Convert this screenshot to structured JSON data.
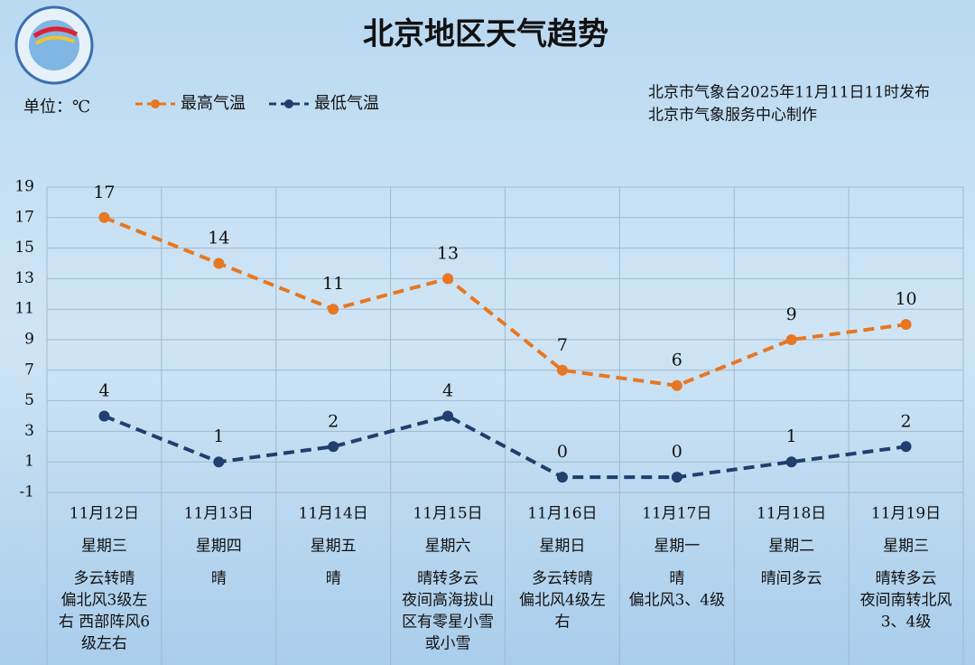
{
  "chart_data": {
    "type": "line",
    "title": "北京地区天气趋势",
    "unit": "单位：℃",
    "publisher": [
      "北京市气象台2025年11月11日11时发布",
      "北京市气象服务中心制作"
    ],
    "categories": [
      "11月12日",
      "11月13日",
      "11月14日",
      "11月15日",
      "11月16日",
      "11月17日",
      "11月18日",
      "11月19日"
    ],
    "weekdays": [
      "星期三",
      "星期四",
      "星期五",
      "星期六",
      "星期日",
      "星期一",
      "星期二",
      "星期三"
    ],
    "weather": [
      [
        "多云转晴",
        "偏北风3级左",
        "右  西部阵风6",
        "级左右"
      ],
      [
        "晴"
      ],
      [
        "晴"
      ],
      [
        "晴转多云",
        "夜间高海拔山",
        "区有零星小雪",
        "或小雪"
      ],
      [
        "多云转晴",
        "偏北风4级左",
        "右"
      ],
      [
        "晴",
        "偏北风3、4级"
      ],
      [
        "晴间多云"
      ],
      [
        "晴转多云",
        "夜间南转北风",
        "3、4级"
      ]
    ],
    "series": [
      {
        "name": "最高气温",
        "color": "#e87722",
        "values": [
          17,
          14,
          11,
          13,
          7,
          6,
          9,
          10
        ]
      },
      {
        "name": "最低气温",
        "color": "#1f3f6e",
        "values": [
          4,
          1,
          2,
          4,
          0,
          0,
          1,
          2
        ]
      }
    ],
    "ylim": [
      -1,
      19
    ],
    "yticks": [
      -1,
      1,
      3,
      5,
      7,
      9,
      11,
      13,
      15,
      17,
      19
    ],
    "grid": true
  }
}
